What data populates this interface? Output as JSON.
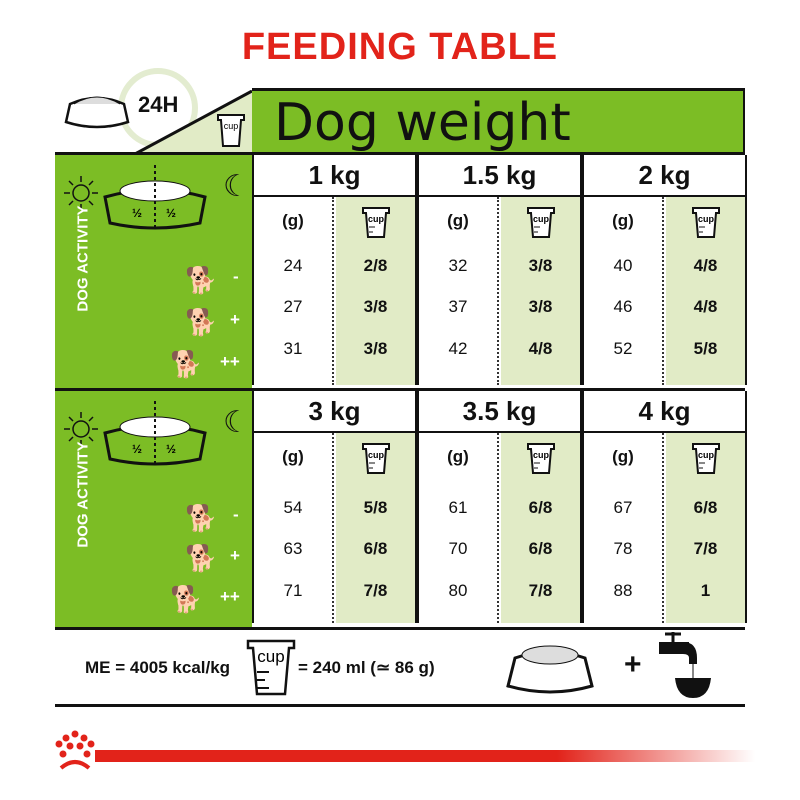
{
  "title": "FEEDING TABLE",
  "duration": "24H",
  "header": "Dog weight",
  "cup_label": "cup",
  "g_label": "(g)",
  "half": "½",
  "activity_label": "DOG ACTIVITY",
  "activity_levels": [
    "-",
    "+",
    "++"
  ],
  "blocks": [
    {
      "weights": [
        {
          "label": "1 kg",
          "g": [
            "24",
            "27",
            "31"
          ],
          "cup": [
            "2/8",
            "3/8",
            "3/8"
          ]
        },
        {
          "label": "1.5 kg",
          "g": [
            "32",
            "37",
            "42"
          ],
          "cup": [
            "3/8",
            "3/8",
            "4/8"
          ]
        },
        {
          "label": "2 kg",
          "g": [
            "40",
            "46",
            "52"
          ],
          "cup": [
            "4/8",
            "4/8",
            "5/8"
          ]
        }
      ]
    },
    {
      "weights": [
        {
          "label": "3 kg",
          "g": [
            "54",
            "63",
            "71"
          ],
          "cup": [
            "5/8",
            "6/8",
            "7/8"
          ]
        },
        {
          "label": "3.5 kg",
          "g": [
            "61",
            "70",
            "80"
          ],
          "cup": [
            "6/8",
            "6/8",
            "7/8"
          ]
        },
        {
          "label": "4 kg",
          "g": [
            "67",
            "78",
            "88"
          ],
          "cup": [
            "6/8",
            "7/8",
            "1"
          ]
        }
      ]
    }
  ],
  "footer": {
    "energy": "ME = 4005 kcal/kg",
    "cup_equiv": "= 240 ml (≃ 86 g)",
    "plus": "+"
  },
  "colors": {
    "brand_red": "#e2231a",
    "green": "#7cbd25",
    "light_green": "#e1ebc6"
  }
}
